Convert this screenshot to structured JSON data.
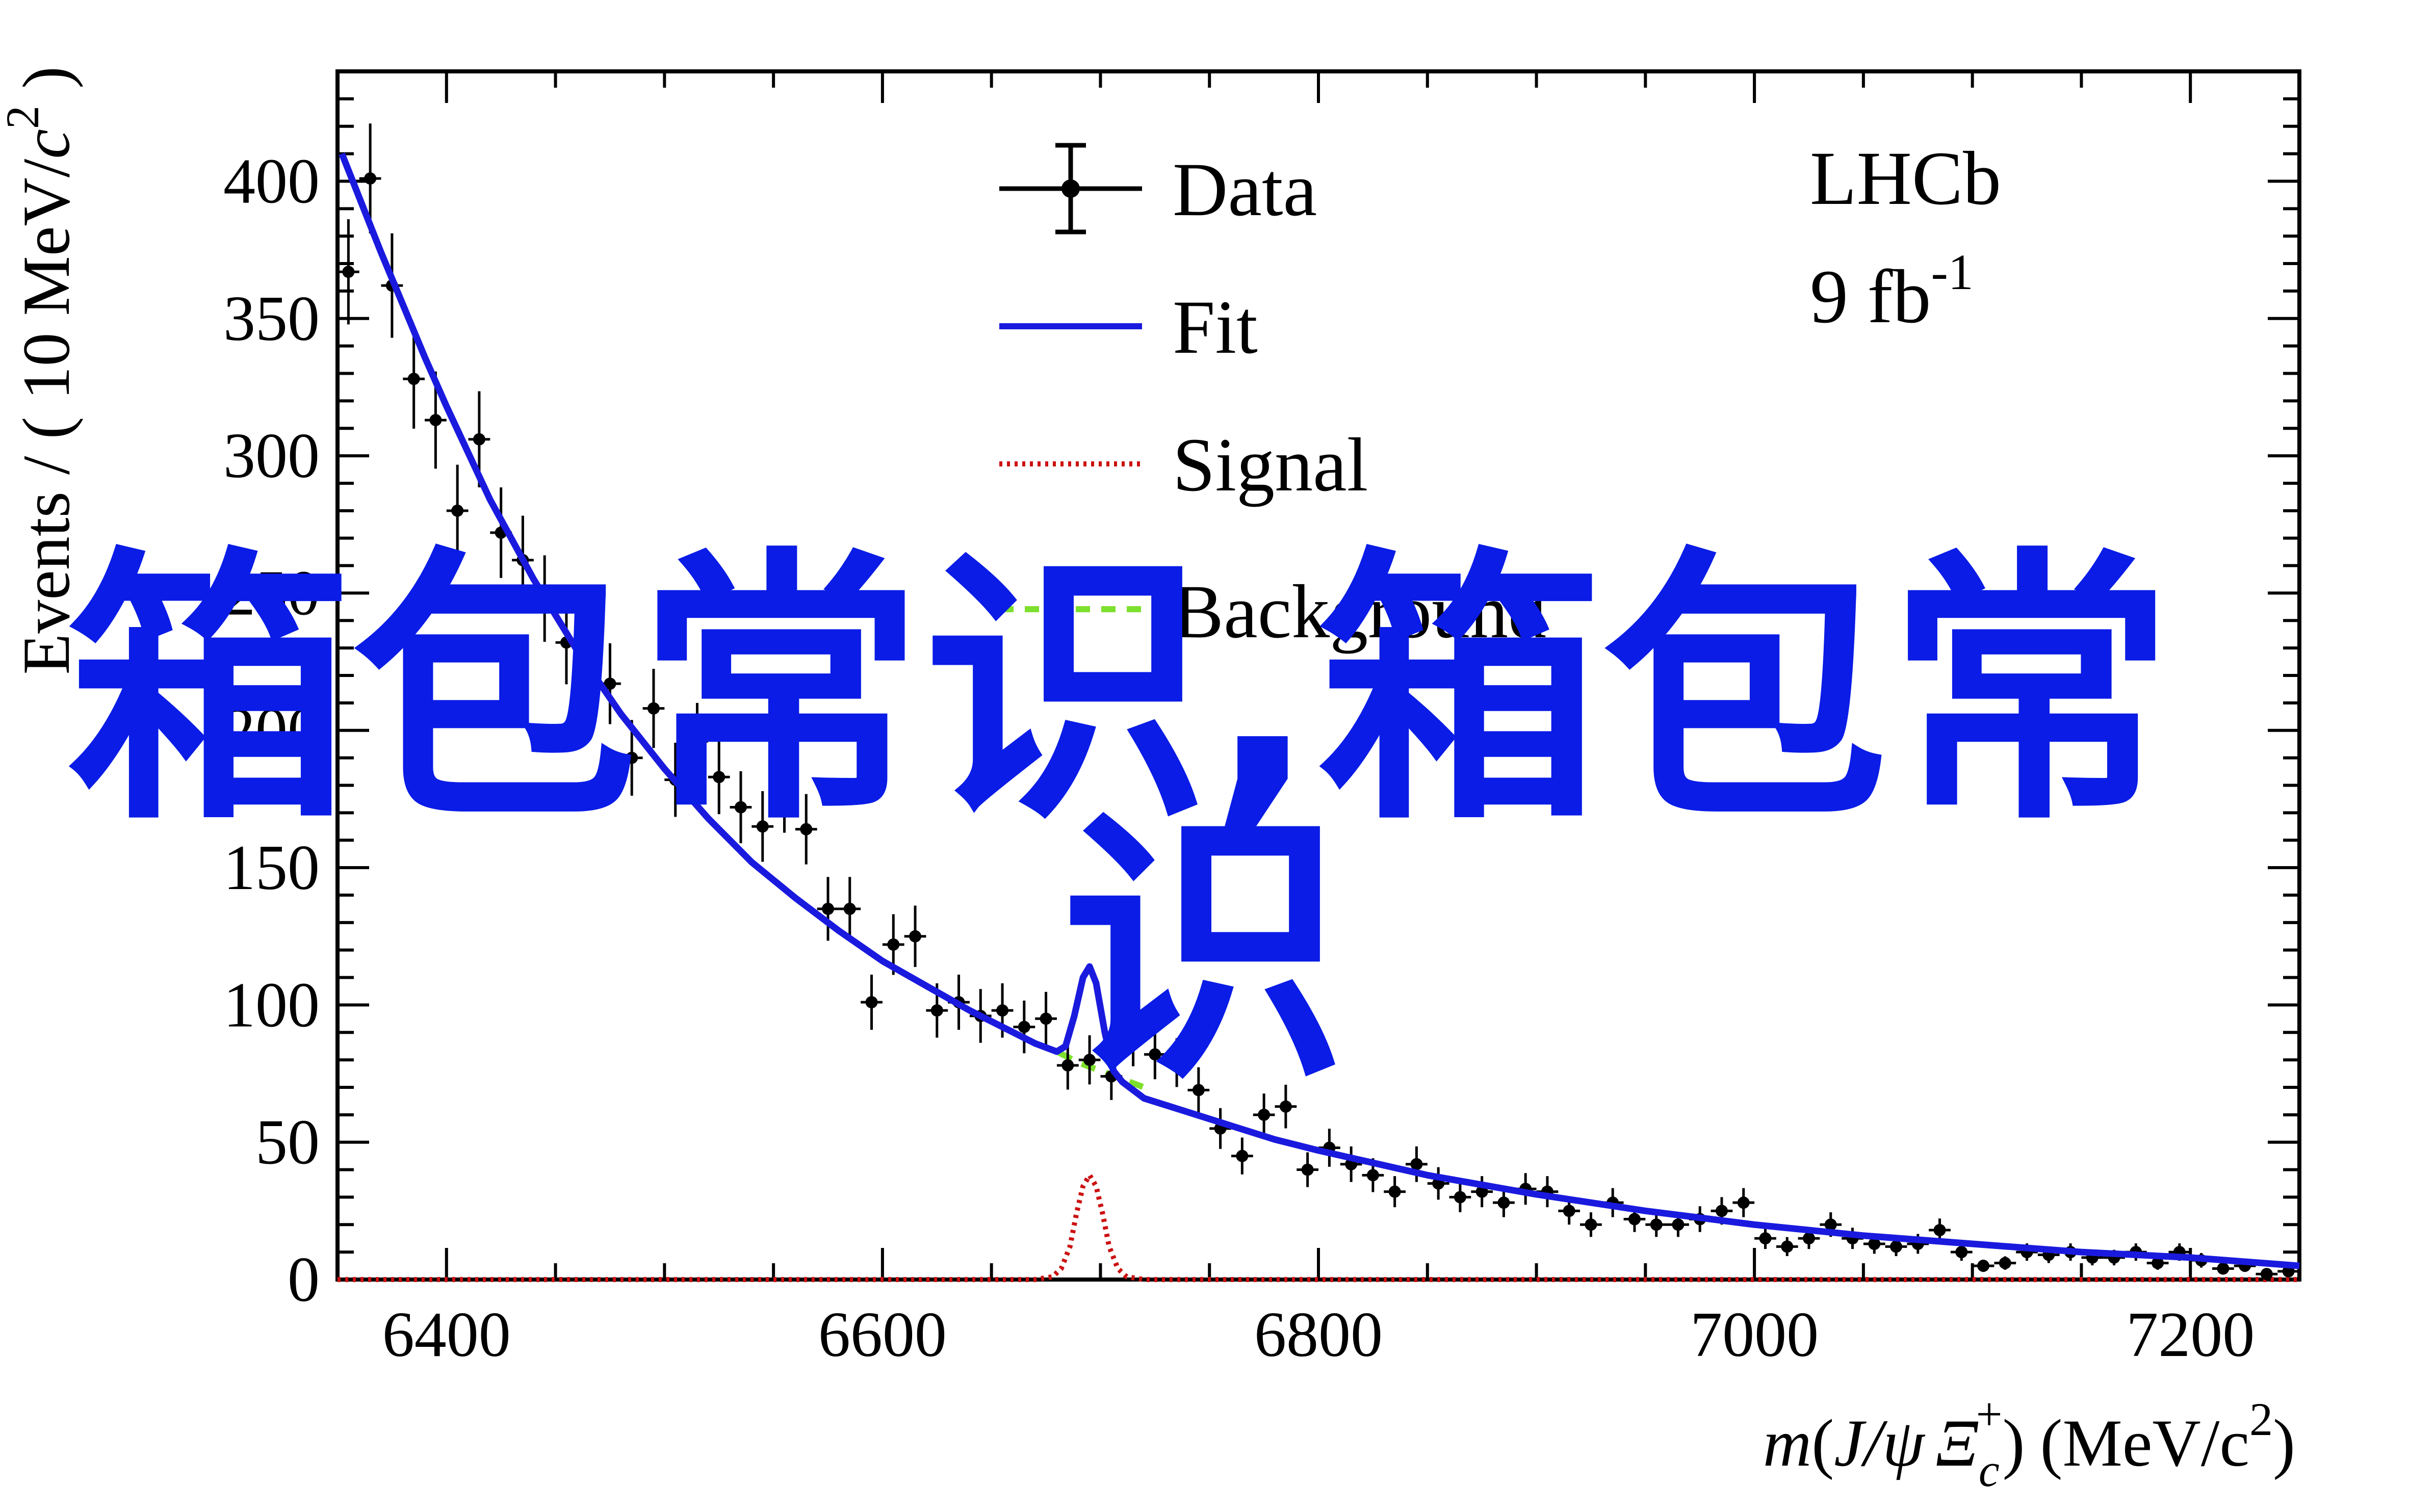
{
  "chart_data": {
    "type": "scatter",
    "title": "",
    "xlabel": "m(J/ψ Ξc+) (MeV/c2)",
    "xlabel_parts": {
      "m": "m",
      "open": "(",
      "jpsi": "J/ψ",
      "xi": "Ξ",
      "xi_sub": "c",
      "xi_sup": "+",
      "close": ")",
      "units": "(MeV/c",
      "units_sup": "2",
      "units_close": ")"
    },
    "ylabel": "Events / ( 10 MeV/c2 )",
    "ylabel_parts": {
      "main": "Events / ( 10 MeV/",
      "c": "c",
      "sup": "2",
      "close": " )"
    },
    "xlim": [
      6350,
      7250
    ],
    "ylim": [
      0,
      440
    ],
    "x_ticks": [
      6400,
      6600,
      6800,
      7000,
      7200
    ],
    "x_tick_labels": [
      "6400",
      "6600",
      "6800",
      "7000",
      "7200"
    ],
    "y_ticks": [
      0,
      50,
      100,
      150,
      200,
      250,
      300,
      350,
      400
    ],
    "y_tick_labels": [
      "0",
      "50",
      "100",
      "150",
      "200",
      "250",
      "300",
      "350",
      "400"
    ],
    "legend_position": "top-center",
    "legend": [
      {
        "label": "Data",
        "style": "points-with-errorbars",
        "color": "#000000"
      },
      {
        "label": "Fit",
        "style": "solid",
        "color": "#1a1adf"
      },
      {
        "label": "Signal",
        "style": "dotted",
        "color": "#cc1111"
      },
      {
        "label": "Background",
        "style": "dashed",
        "color": "#7ee02e"
      }
    ],
    "annotations": {
      "experiment": "LHCb",
      "luminosity": "9 fb",
      "luminosity_sup": "-1"
    },
    "series": [
      {
        "name": "Data",
        "color": "#000000",
        "x_err": 5,
        "points": [
          [
            6355,
            367
          ],
          [
            6365,
            401
          ],
          [
            6375,
            362
          ],
          [
            6385,
            328
          ],
          [
            6395,
            313
          ],
          [
            6405,
            280
          ],
          [
            6415,
            306
          ],
          [
            6425,
            272
          ],
          [
            6435,
            262
          ],
          [
            6445,
            248
          ],
          [
            6455,
            232
          ],
          [
            6465,
            212
          ],
          [
            6475,
            217
          ],
          [
            6485,
            190
          ],
          [
            6495,
            208
          ],
          [
            6505,
            182
          ],
          [
            6515,
            196
          ],
          [
            6525,
            183
          ],
          [
            6535,
            172
          ],
          [
            6545,
            165
          ],
          [
            6555,
            176
          ],
          [
            6565,
            164
          ],
          [
            6575,
            135
          ],
          [
            6585,
            135
          ],
          [
            6595,
            101
          ],
          [
            6605,
            122
          ],
          [
            6615,
            125
          ],
          [
            6625,
            98
          ],
          [
            6635,
            101
          ],
          [
            6645,
            96
          ],
          [
            6655,
            98
          ],
          [
            6665,
            92
          ],
          [
            6675,
            95
          ],
          [
            6685,
            78
          ],
          [
            6695,
            80
          ],
          [
            6705,
            74
          ],
          [
            6715,
            87
          ],
          [
            6725,
            82
          ],
          [
            6735,
            79
          ],
          [
            6745,
            69
          ],
          [
            6755,
            55
          ],
          [
            6765,
            45
          ],
          [
            6775,
            60
          ],
          [
            6785,
            63
          ],
          [
            6795,
            40
          ],
          [
            6805,
            48
          ],
          [
            6815,
            42
          ],
          [
            6825,
            38
          ],
          [
            6835,
            32
          ],
          [
            6845,
            42
          ],
          [
            6855,
            35
          ],
          [
            6865,
            30
          ],
          [
            6875,
            32
          ],
          [
            6885,
            28
          ],
          [
            6895,
            33
          ],
          [
            6905,
            32
          ],
          [
            6915,
            25
          ],
          [
            6925,
            20
          ],
          [
            6935,
            28
          ],
          [
            6945,
            22
          ],
          [
            6955,
            20
          ],
          [
            6965,
            20
          ],
          [
            6975,
            22
          ],
          [
            6985,
            25
          ],
          [
            6995,
            28
          ],
          [
            7005,
            15
          ],
          [
            7015,
            12
          ],
          [
            7025,
            15
          ],
          [
            7035,
            20
          ],
          [
            7045,
            15
          ],
          [
            7055,
            13
          ],
          [
            7065,
            12
          ],
          [
            7075,
            13
          ],
          [
            7085,
            18
          ],
          [
            7095,
            10
          ],
          [
            7105,
            5
          ],
          [
            7115,
            6
          ],
          [
            7125,
            10
          ],
          [
            7135,
            9
          ],
          [
            7145,
            10
          ],
          [
            7155,
            8
          ],
          [
            7165,
            8
          ],
          [
            7175,
            10
          ],
          [
            7185,
            6
          ],
          [
            7195,
            10
          ],
          [
            7205,
            7
          ],
          [
            7215,
            4
          ],
          [
            7225,
            5
          ],
          [
            7235,
            2
          ],
          [
            7245,
            3
          ]
        ]
      },
      {
        "name": "Fit",
        "color": "#1a1adf",
        "x": [
          6352,
          6360,
          6370,
          6380,
          6390,
          6400,
          6420,
          6440,
          6460,
          6480,
          6500,
          6520,
          6540,
          6560,
          6580,
          6600,
          6620,
          6640,
          6660,
          6670,
          6680,
          6684,
          6688,
          6692,
          6695,
          6698,
          6702,
          6706,
          6710,
          6720,
          6740,
          6760,
          6780,
          6800,
          6850,
          6900,
          6950,
          7000,
          7050,
          7100,
          7150,
          7200,
          7250
        ],
        "values": [
          410,
          394,
          374,
          355,
          336,
          318,
          284,
          255,
          229,
          206,
          186,
          168,
          152,
          139,
          127,
          116,
          107,
          98,
          90,
          86,
          83,
          85,
          96,
          110,
          114,
          108,
          90,
          76,
          72,
          66,
          61,
          56,
          51,
          47,
          38,
          31,
          25,
          20,
          16,
          13,
          10,
          8,
          5
        ]
      },
      {
        "name": "Signal",
        "color": "#cc1111",
        "x": [
          6350,
          6670,
          6678,
          6682,
          6686,
          6689,
          6692,
          6695,
          6698,
          6701,
          6704,
          6708,
          6712,
          6720,
          7250
        ],
        "values": [
          0,
          0,
          1,
          4,
          12,
          24,
          34,
          38,
          34,
          24,
          12,
          4,
          1,
          0,
          0
        ]
      },
      {
        "name": "Background",
        "color": "#7ee02e",
        "x": [
          6670,
          6680,
          6690,
          6700,
          6710,
          6720
        ],
        "values": [
          86,
          83,
          79,
          76,
          73,
          70
        ]
      }
    ]
  },
  "watermark": {
    "line1": "箱包常识,箱包常",
    "line2": "识",
    "color": "#0a1ce6"
  }
}
